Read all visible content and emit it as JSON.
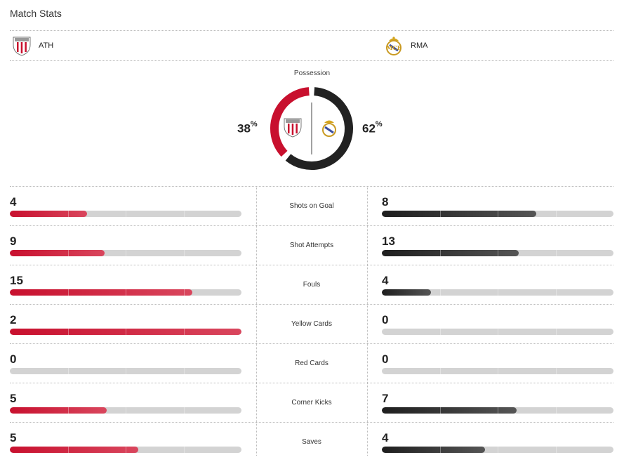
{
  "header": {
    "title": "Match Stats"
  },
  "teams": {
    "home": {
      "abbr": "ATH",
      "logo_icon": "athletic-club-crest-icon",
      "color": "#c8102e"
    },
    "away": {
      "abbr": "RMA",
      "logo_icon": "real-madrid-crest-icon",
      "color": "#222222"
    }
  },
  "possession": {
    "label": "Possession",
    "home": 38,
    "away": 62,
    "home_text": "38",
    "away_text": "62",
    "unit": "%"
  },
  "stats": [
    {
      "label": "Shots on Goal",
      "home": 4,
      "away": 8
    },
    {
      "label": "Shot Attempts",
      "home": 9,
      "away": 13
    },
    {
      "label": "Fouls",
      "home": 15,
      "away": 4
    },
    {
      "label": "Yellow Cards",
      "home": 2,
      "away": 0
    },
    {
      "label": "Red Cards",
      "home": 0,
      "away": 0
    },
    {
      "label": "Corner Kicks",
      "home": 5,
      "away": 7
    },
    {
      "label": "Saves",
      "home": 5,
      "away": 4
    }
  ]
}
